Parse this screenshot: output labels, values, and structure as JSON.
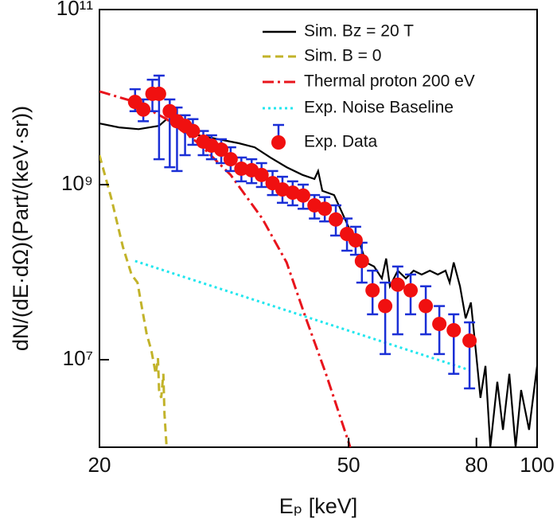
{
  "chart_data": {
    "type": "line",
    "xlabel": "Eₚ [keV]",
    "ylabel": "dN/(dE·dΩ)(Part/(keV·sr))",
    "xscale": "log",
    "yscale": "log",
    "xlim": [
      20,
      100
    ],
    "ylim": [
      1000000,
      100000000000
    ],
    "xticks": [
      20,
      50,
      80,
      100
    ],
    "yticks": [
      {
        "value": 10000000,
        "label": "10⁷"
      },
      {
        "value": 1000000000,
        "label": "10⁹"
      },
      {
        "value": 100000000000,
        "label": "10¹¹"
      }
    ],
    "legend": "upper right",
    "series": [
      {
        "name": "Sim. Bz = 20 T",
        "color": "#000000",
        "style": "solid",
        "x": [
          20.0,
          21.5,
          23.1,
          24.9,
          25.6,
          26.8,
          28.8,
          31.0,
          33.4,
          35.4,
          37.5,
          39.8,
          42.2,
          44.1,
          44.7,
          45.4,
          47.4,
          50.3,
          51.8,
          53.3,
          54.9,
          56.5,
          57.4,
          58.2,
          59.9,
          61.7,
          63.5,
          65.4,
          67.4,
          69.4,
          71.4,
          72.5,
          73.6,
          75.3,
          76.9,
          78.4,
          79.8,
          81.2,
          82.7,
          84.2,
          86.4,
          88.2,
          90.3,
          92.4,
          94.3,
          97.1,
          100
        ],
        "values": [
          5000000000.0,
          4500000000.0,
          4300000000.0,
          4700000000.0,
          5600000000.0,
          4500000000.0,
          3660000000.0,
          3300000000.0,
          2970000000.0,
          2670000000.0,
          2040000000.0,
          1580000000.0,
          1290000000.0,
          1160000000.0,
          1430000000.0,
          850000000.0,
          760000000.0,
          297000000.0,
          241000000.0,
          129000000.0,
          116000000.0,
          85000000.0,
          143000000.0,
          69000000.0,
          104000000.0,
          85000000.0,
          104000000.0,
          94000000.0,
          104000000.0,
          94000000.0,
          104000000.0,
          76000000.0,
          129000000.0,
          69000000.0,
          29700000.0,
          45000000.0,
          12900000.0,
          3660000.0,
          8500000.0,
          1000000.0,
          5600000.0,
          1580000.0,
          6900000.0,
          1000000.0,
          4500000.0,
          1580000.0,
          8500000.0
        ]
      },
      {
        "name": "Sim. B = 0",
        "color": "#c2b32a",
        "style": "dashed",
        "x": [
          20.0,
          20.9,
          21.8,
          22.5,
          23.0,
          23.3,
          23.8,
          24.2,
          24.6,
          24.8,
          24.9,
          25.1,
          25.3,
          25.4,
          25.6
        ],
        "values": [
          2170000000.0,
          690000000.0,
          195000000.0,
          94000000.0,
          76000000.0,
          45000000.0,
          19500000.0,
          12900000.0,
          6900000.0,
          10400000.0,
          4500000.0,
          3660000.0,
          6900000.0,
          2400000.0,
          1000000.0
        ]
      },
      {
        "name": "Thermal proton 200 eV",
        "color": "#e8141c",
        "style": "dashdot",
        "x": [
          20.0,
          22.8,
          25.6,
          28.8,
          32.4,
          36.4,
          39.8,
          42.6,
          46.0,
          50.3
        ],
        "values": [
          11600000000.0,
          8800000000.0,
          5600000000.0,
          2970000000.0,
          1290000000.0,
          410000000.0,
          129000000.0,
          31600000.0,
          6900000.0,
          1000000.0
        ]
      },
      {
        "name": "Exp. Noise Baseline",
        "color": "#22e6ee",
        "style": "dotted",
        "x": [
          22.8,
          78.0
        ],
        "values": [
          134000000.0,
          7600000.0
        ]
      },
      {
        "name": "Exp. Data",
        "color": "#f01010",
        "error_color": "#1a2fd6",
        "style": "marker",
        "x": [
          22.8,
          23.5,
          24.3,
          24.9,
          25.9,
          26.6,
          27.4,
          28.2,
          29.3,
          30.2,
          31.3,
          32.4,
          33.7,
          35.0,
          36.3,
          37.8,
          39.2,
          40.7,
          42.3,
          44.1,
          45.8,
          47.7,
          49.7,
          51.3,
          52.5,
          54.6,
          57.2,
          59.9,
          62.8,
          66.4,
          69.8,
          73.6,
          78.0
        ],
        "values": [
          8800000000.0,
          7200000000.0,
          10900000000.0,
          10900000000.0,
          6900000000.0,
          5300000000.0,
          4700000000.0,
          4100000000.0,
          3100000000.0,
          2790000000.0,
          2510000000.0,
          1950000000.0,
          1520000000.0,
          1460000000.0,
          1290000000.0,
          1040000000.0,
          880000000.0,
          810000000.0,
          750000000.0,
          580000000.0,
          530000000.0,
          400000000.0,
          273000000.0,
          231000000.0,
          134000000.0,
          62000000.0,
          41000000.0,
          72000000.0,
          62000000.0,
          41000000.0,
          25600000.0,
          21700000.0,
          16500000.0
        ],
        "y_low": [
          6900000000.0,
          5300000000.0,
          6900000000.0,
          1950000000.0,
          1580000000.0,
          1430000000.0,
          2170000000.0,
          2850000000.0,
          2170000000.0,
          1950000000.0,
          1760000000.0,
          1430000000.0,
          1090000000.0,
          1040000000.0,
          940000000.0,
          760000000.0,
          620000000.0,
          580000000.0,
          530000000.0,
          410000000.0,
          380000000.0,
          262000000.0,
          176000000.0,
          158000000.0,
          76000000.0,
          33000000.0,
          11600000.0,
          19500000.0,
          33000000.0,
          19500000.0,
          11600000.0,
          6900000.0,
          4700000.0
        ],
        "y_high": [
          12300000000.0,
          9400000000.0,
          15800000000.0,
          17600000000.0,
          9400000000.0,
          7600000000.0,
          6200000000.0,
          5600000000.0,
          4100000000.0,
          3660000000.0,
          3300000000.0,
          2670000000.0,
          2040000000.0,
          1950000000.0,
          1760000000.0,
          1430000000.0,
          1230000000.0,
          1090000000.0,
          1000000000.0,
          760000000.0,
          720000000.0,
          580000000.0,
          410000000.0,
          330000000.0,
          217000000.0,
          104000000.0,
          76000000.0,
          116000000.0,
          94000000.0,
          69000000.0,
          41000000.0,
          33000000.0,
          26700000.0
        ]
      }
    ]
  }
}
